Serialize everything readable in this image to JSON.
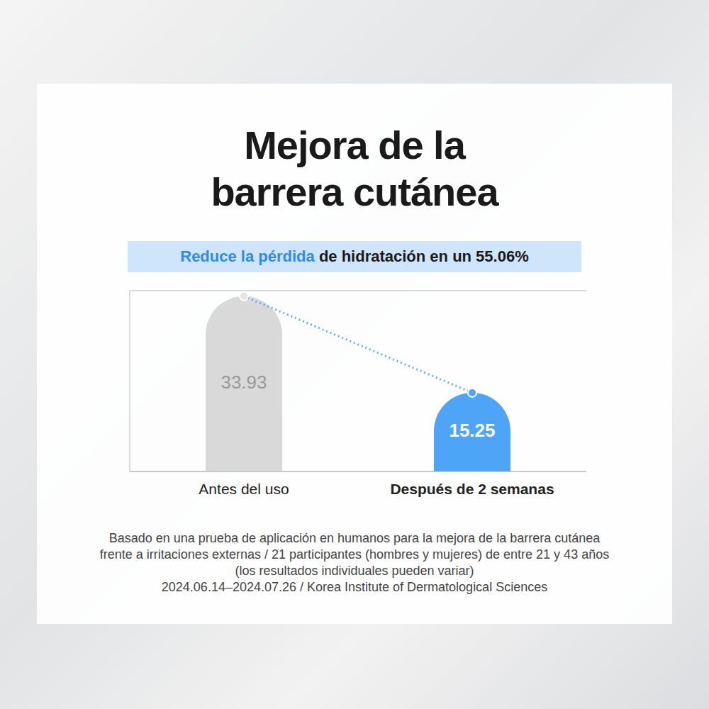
{
  "chart_data": {
    "type": "bar",
    "title": "Mejora de la barrera cutánea",
    "subtitle": [
      "Reduce la pérdida",
      "de hidratación en un 55.06%"
    ],
    "categories": [
      "Antes del uso",
      "Después de 2 semanas"
    ],
    "values": [
      33.93,
      15.25
    ],
    "colors": [
      "#d9d9d9",
      "#4ea5f8"
    ],
    "ylim": [
      0,
      35
    ],
    "yticks": [
      0,
      7,
      14,
      21,
      28,
      35
    ],
    "grid": true,
    "tick_labels": "x",
    "data_labels": true,
    "line_style": "dotted",
    "marker": "circle",
    "notes": [
      "Basado en una prueba de aplicación en humanos para la mejora de la barrera cutánea",
      "frente a irritaciones externas / 21 participantes (hombres y mujeres) de entre 21 y 43 años",
      "(los resultados individuales pueden variar)",
      "2024.06.14–2024.07.26 / Korea Institute of Dermatological Sciences"
    ]
  }
}
